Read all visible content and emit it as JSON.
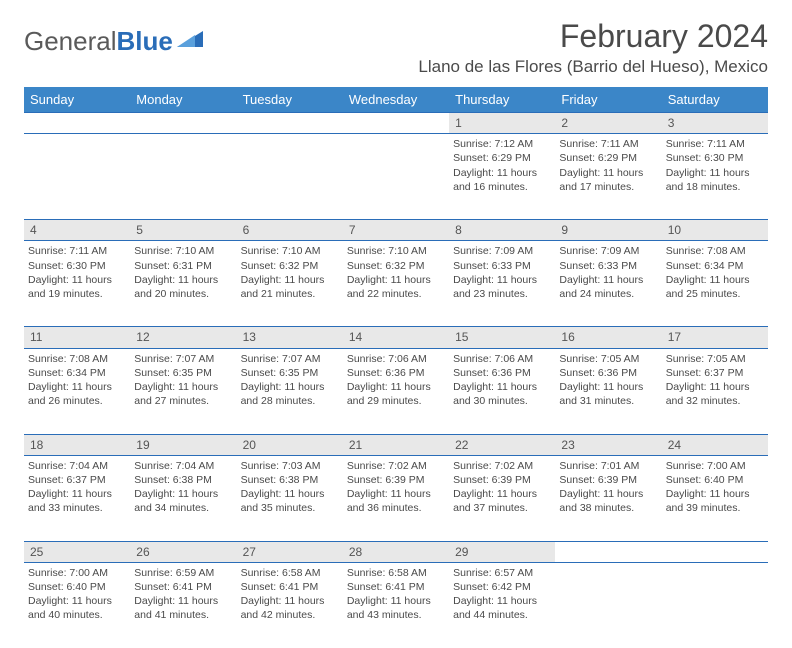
{
  "brand": {
    "part1": "General",
    "part2": "Blue"
  },
  "title": "February 2024",
  "location": "Llano de las Flores (Barrio del Hueso), Mexico",
  "colors": {
    "header_bg": "#3b86c8",
    "header_text": "#ffffff",
    "daynum_bg": "#e8e8e8",
    "rule": "#2a6db8",
    "text": "#4a4a4a",
    "brand_gray": "#5a5a5a",
    "brand_blue": "#2a6db8",
    "page_bg": "#ffffff"
  },
  "days_of_week": [
    "Sunday",
    "Monday",
    "Tuesday",
    "Wednesday",
    "Thursday",
    "Friday",
    "Saturday"
  ],
  "weeks": [
    [
      null,
      null,
      null,
      null,
      {
        "n": "1",
        "sunrise": "7:12 AM",
        "sunset": "6:29 PM",
        "daylight": "11 hours and 16 minutes."
      },
      {
        "n": "2",
        "sunrise": "7:11 AM",
        "sunset": "6:29 PM",
        "daylight": "11 hours and 17 minutes."
      },
      {
        "n": "3",
        "sunrise": "7:11 AM",
        "sunset": "6:30 PM",
        "daylight": "11 hours and 18 minutes."
      }
    ],
    [
      {
        "n": "4",
        "sunrise": "7:11 AM",
        "sunset": "6:30 PM",
        "daylight": "11 hours and 19 minutes."
      },
      {
        "n": "5",
        "sunrise": "7:10 AM",
        "sunset": "6:31 PM",
        "daylight": "11 hours and 20 minutes."
      },
      {
        "n": "6",
        "sunrise": "7:10 AM",
        "sunset": "6:32 PM",
        "daylight": "11 hours and 21 minutes."
      },
      {
        "n": "7",
        "sunrise": "7:10 AM",
        "sunset": "6:32 PM",
        "daylight": "11 hours and 22 minutes."
      },
      {
        "n": "8",
        "sunrise": "7:09 AM",
        "sunset": "6:33 PM",
        "daylight": "11 hours and 23 minutes."
      },
      {
        "n": "9",
        "sunrise": "7:09 AM",
        "sunset": "6:33 PM",
        "daylight": "11 hours and 24 minutes."
      },
      {
        "n": "10",
        "sunrise": "7:08 AM",
        "sunset": "6:34 PM",
        "daylight": "11 hours and 25 minutes."
      }
    ],
    [
      {
        "n": "11",
        "sunrise": "7:08 AM",
        "sunset": "6:34 PM",
        "daylight": "11 hours and 26 minutes."
      },
      {
        "n": "12",
        "sunrise": "7:07 AM",
        "sunset": "6:35 PM",
        "daylight": "11 hours and 27 minutes."
      },
      {
        "n": "13",
        "sunrise": "7:07 AM",
        "sunset": "6:35 PM",
        "daylight": "11 hours and 28 minutes."
      },
      {
        "n": "14",
        "sunrise": "7:06 AM",
        "sunset": "6:36 PM",
        "daylight": "11 hours and 29 minutes."
      },
      {
        "n": "15",
        "sunrise": "7:06 AM",
        "sunset": "6:36 PM",
        "daylight": "11 hours and 30 minutes."
      },
      {
        "n": "16",
        "sunrise": "7:05 AM",
        "sunset": "6:36 PM",
        "daylight": "11 hours and 31 minutes."
      },
      {
        "n": "17",
        "sunrise": "7:05 AM",
        "sunset": "6:37 PM",
        "daylight": "11 hours and 32 minutes."
      }
    ],
    [
      {
        "n": "18",
        "sunrise": "7:04 AM",
        "sunset": "6:37 PM",
        "daylight": "11 hours and 33 minutes."
      },
      {
        "n": "19",
        "sunrise": "7:04 AM",
        "sunset": "6:38 PM",
        "daylight": "11 hours and 34 minutes."
      },
      {
        "n": "20",
        "sunrise": "7:03 AM",
        "sunset": "6:38 PM",
        "daylight": "11 hours and 35 minutes."
      },
      {
        "n": "21",
        "sunrise": "7:02 AM",
        "sunset": "6:39 PM",
        "daylight": "11 hours and 36 minutes."
      },
      {
        "n": "22",
        "sunrise": "7:02 AM",
        "sunset": "6:39 PM",
        "daylight": "11 hours and 37 minutes."
      },
      {
        "n": "23",
        "sunrise": "7:01 AM",
        "sunset": "6:39 PM",
        "daylight": "11 hours and 38 minutes."
      },
      {
        "n": "24",
        "sunrise": "7:00 AM",
        "sunset": "6:40 PM",
        "daylight": "11 hours and 39 minutes."
      }
    ],
    [
      {
        "n": "25",
        "sunrise": "7:00 AM",
        "sunset": "6:40 PM",
        "daylight": "11 hours and 40 minutes."
      },
      {
        "n": "26",
        "sunrise": "6:59 AM",
        "sunset": "6:41 PM",
        "daylight": "11 hours and 41 minutes."
      },
      {
        "n": "27",
        "sunrise": "6:58 AM",
        "sunset": "6:41 PM",
        "daylight": "11 hours and 42 minutes."
      },
      {
        "n": "28",
        "sunrise": "6:58 AM",
        "sunset": "6:41 PM",
        "daylight": "11 hours and 43 minutes."
      },
      {
        "n": "29",
        "sunrise": "6:57 AM",
        "sunset": "6:42 PM",
        "daylight": "11 hours and 44 minutes."
      },
      null,
      null
    ]
  ],
  "labels": {
    "sunrise": "Sunrise:",
    "sunset": "Sunset:",
    "daylight": "Daylight:"
  }
}
